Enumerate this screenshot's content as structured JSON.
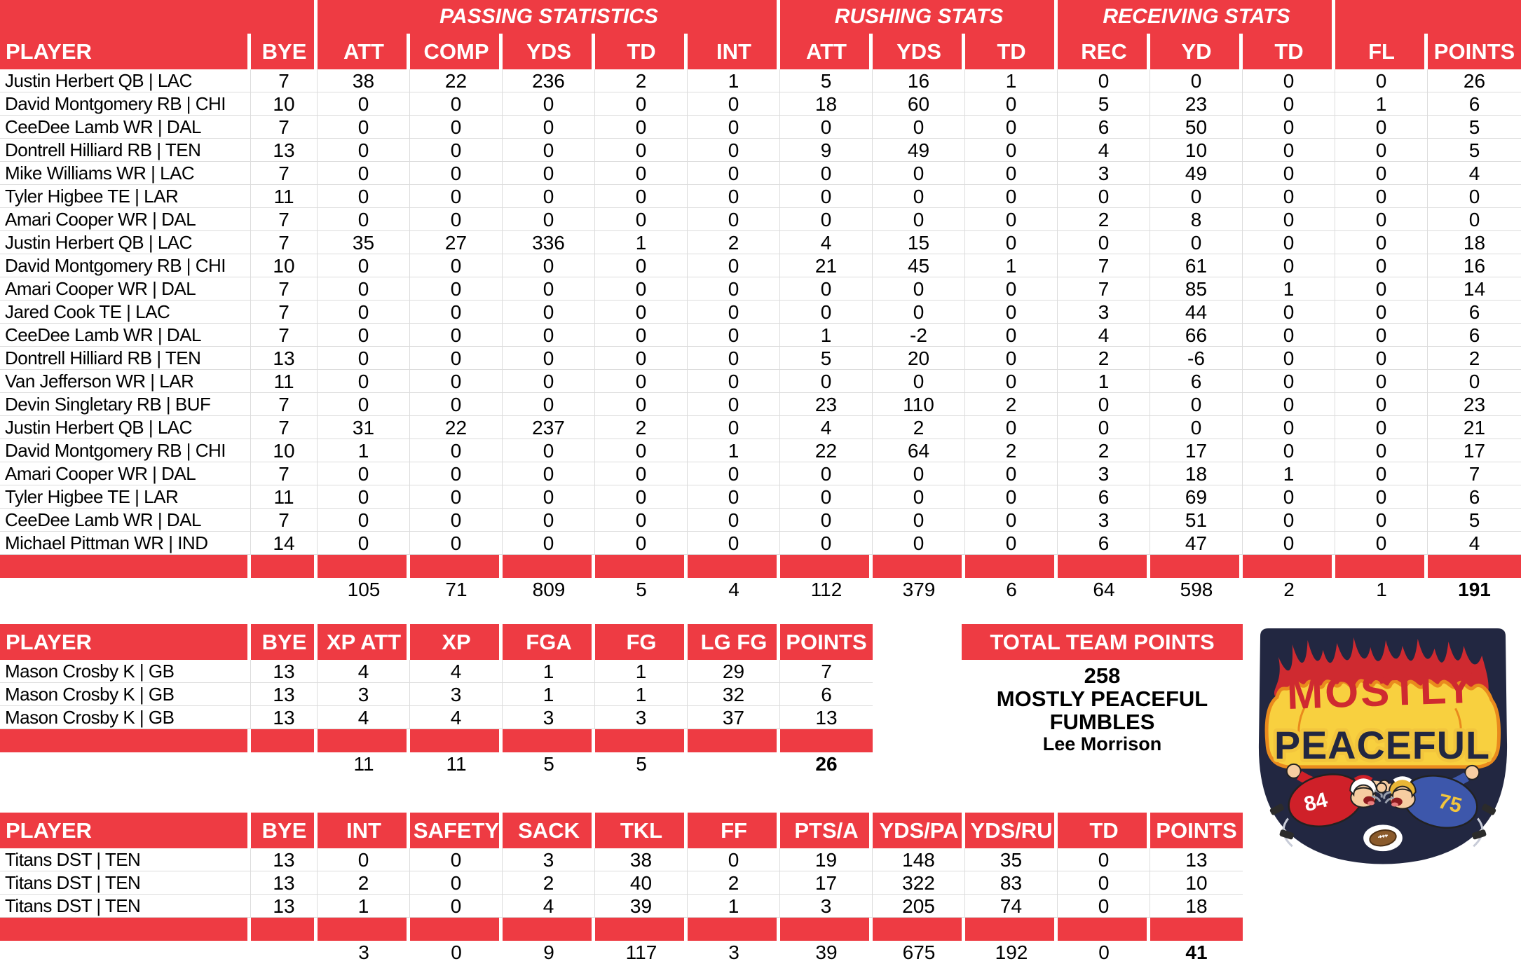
{
  "colors": {
    "header_red": "#ee3b43",
    "grid_line": "#dcdcdc",
    "text": "#000000",
    "graphic_navy": "#222741",
    "flame_red": "#cf2a30",
    "flame_yellow": "#f8d03f",
    "flame_orange": "#e98a1d",
    "jersey_red": "#cf2029",
    "jersey_blue": "#3d57ab",
    "helmet_gold": "#e9b636"
  },
  "tables": {
    "main": {
      "groups": [
        "PASSING STATISTICS",
        "RUSHING STATS",
        "RECEIVING STATS"
      ],
      "columns": [
        "PLAYER",
        "BYE",
        "ATT",
        "COMP",
        "YDS",
        "TD",
        "INT",
        "ATT",
        "YDS",
        "TD",
        "REC",
        "YD",
        "TD",
        "FL",
        "POINTS"
      ],
      "rows": [
        [
          "Justin Herbert QB | LAC",
          7,
          38,
          22,
          236,
          2,
          1,
          5,
          16,
          1,
          0,
          0,
          0,
          0,
          26
        ],
        [
          "David Montgomery RB | CHI",
          10,
          0,
          0,
          0,
          0,
          0,
          18,
          60,
          0,
          5,
          23,
          0,
          1,
          6
        ],
        [
          "CeeDee Lamb WR | DAL",
          7,
          0,
          0,
          0,
          0,
          0,
          0,
          0,
          0,
          6,
          50,
          0,
          0,
          5
        ],
        [
          "Dontrell Hilliard RB | TEN",
          13,
          0,
          0,
          0,
          0,
          0,
          9,
          49,
          0,
          4,
          10,
          0,
          0,
          5
        ],
        [
          "Mike Williams WR | LAC",
          7,
          0,
          0,
          0,
          0,
          0,
          0,
          0,
          0,
          3,
          49,
          0,
          0,
          4
        ],
        [
          "Tyler Higbee TE | LAR",
          11,
          0,
          0,
          0,
          0,
          0,
          0,
          0,
          0,
          0,
          0,
          0,
          0,
          0
        ],
        [
          "Amari Cooper WR | DAL",
          7,
          0,
          0,
          0,
          0,
          0,
          0,
          0,
          0,
          2,
          8,
          0,
          0,
          0
        ],
        [
          "Justin Herbert QB | LAC",
          7,
          35,
          27,
          336,
          1,
          2,
          4,
          15,
          0,
          0,
          0,
          0,
          0,
          18
        ],
        [
          "David Montgomery RB | CHI",
          10,
          0,
          0,
          0,
          0,
          0,
          21,
          45,
          1,
          7,
          61,
          0,
          0,
          16
        ],
        [
          "Amari Cooper WR | DAL",
          7,
          0,
          0,
          0,
          0,
          0,
          0,
          0,
          0,
          7,
          85,
          1,
          0,
          14
        ],
        [
          "Jared Cook TE | LAC",
          7,
          0,
          0,
          0,
          0,
          0,
          0,
          0,
          0,
          3,
          44,
          0,
          0,
          6
        ],
        [
          "CeeDee Lamb WR | DAL",
          7,
          0,
          0,
          0,
          0,
          0,
          1,
          -2,
          0,
          4,
          66,
          0,
          0,
          6
        ],
        [
          "Dontrell Hilliard RB | TEN",
          13,
          0,
          0,
          0,
          0,
          0,
          5,
          20,
          0,
          2,
          -6,
          0,
          0,
          2
        ],
        [
          "Van Jefferson WR | LAR",
          11,
          0,
          0,
          0,
          0,
          0,
          0,
          0,
          0,
          1,
          6,
          0,
          0,
          0
        ],
        [
          "Devin Singletary RB | BUF",
          7,
          0,
          0,
          0,
          0,
          0,
          23,
          110,
          2,
          0,
          0,
          0,
          0,
          23
        ],
        [
          "Justin Herbert QB | LAC",
          7,
          31,
          22,
          237,
          2,
          0,
          4,
          2,
          0,
          0,
          0,
          0,
          0,
          21
        ],
        [
          "David Montgomery RB | CHI",
          10,
          1,
          0,
          0,
          0,
          1,
          22,
          64,
          2,
          2,
          17,
          0,
          0,
          17
        ],
        [
          "Amari Cooper WR | DAL",
          7,
          0,
          0,
          0,
          0,
          0,
          0,
          0,
          0,
          3,
          18,
          1,
          0,
          7
        ],
        [
          "Tyler Higbee TE | LAR",
          11,
          0,
          0,
          0,
          0,
          0,
          0,
          0,
          0,
          6,
          69,
          0,
          0,
          6
        ],
        [
          "CeeDee Lamb WR | DAL",
          7,
          0,
          0,
          0,
          0,
          0,
          0,
          0,
          0,
          3,
          51,
          0,
          0,
          5
        ],
        [
          "Michael Pittman WR | IND",
          14,
          0,
          0,
          0,
          0,
          0,
          0,
          0,
          0,
          6,
          47,
          0,
          0,
          4
        ]
      ],
      "totals": [
        "",
        "",
        105,
        71,
        809,
        5,
        4,
        112,
        379,
        6,
        64,
        598,
        2,
        1,
        191
      ]
    },
    "kicker": {
      "columns": [
        "PLAYER",
        "BYE",
        "XP ATT",
        "XP",
        "FGA",
        "FG",
        "LG FG",
        "POINTS"
      ],
      "rows": [
        [
          "Mason Crosby K | GB",
          13,
          4,
          4,
          1,
          1,
          29,
          7
        ],
        [
          "Mason Crosby K | GB",
          13,
          3,
          3,
          1,
          1,
          32,
          6
        ],
        [
          "Mason Crosby K | GB",
          13,
          4,
          4,
          3,
          3,
          37,
          13
        ]
      ],
      "totals": [
        "",
        "",
        11,
        11,
        5,
        5,
        "",
        26
      ]
    },
    "dst": {
      "columns": [
        "PLAYER",
        "BYE",
        "INT",
        "SAFETY",
        "SACK",
        "TKL",
        "FF",
        "PTS/A",
        "YDS/PA",
        "YDS/RU",
        "TD",
        "POINTS"
      ],
      "rows": [
        [
          "Titans DST | TEN",
          13,
          0,
          0,
          3,
          38,
          0,
          19,
          148,
          35,
          0,
          13
        ],
        [
          "Titans DST | TEN",
          13,
          2,
          0,
          2,
          40,
          2,
          17,
          322,
          83,
          0,
          10
        ],
        [
          "Titans DST | TEN",
          13,
          1,
          0,
          4,
          39,
          1,
          3,
          205,
          74,
          0,
          18
        ]
      ],
      "totals": [
        "",
        "",
        3,
        0,
        9,
        117,
        3,
        39,
        675,
        192,
        0,
        41
      ]
    }
  },
  "team_points": {
    "title": "TOTAL TEAM POINTS",
    "points": "258",
    "team_line1": "MOSTLY PEACEFUL",
    "team_line2": "FUMBLES",
    "owner": "Lee Morrison"
  },
  "graphic": {
    "line1": "MOSTLY",
    "line2": "PEACEFUL",
    "left_jersey_number": "84",
    "right_jersey_number": "75"
  }
}
